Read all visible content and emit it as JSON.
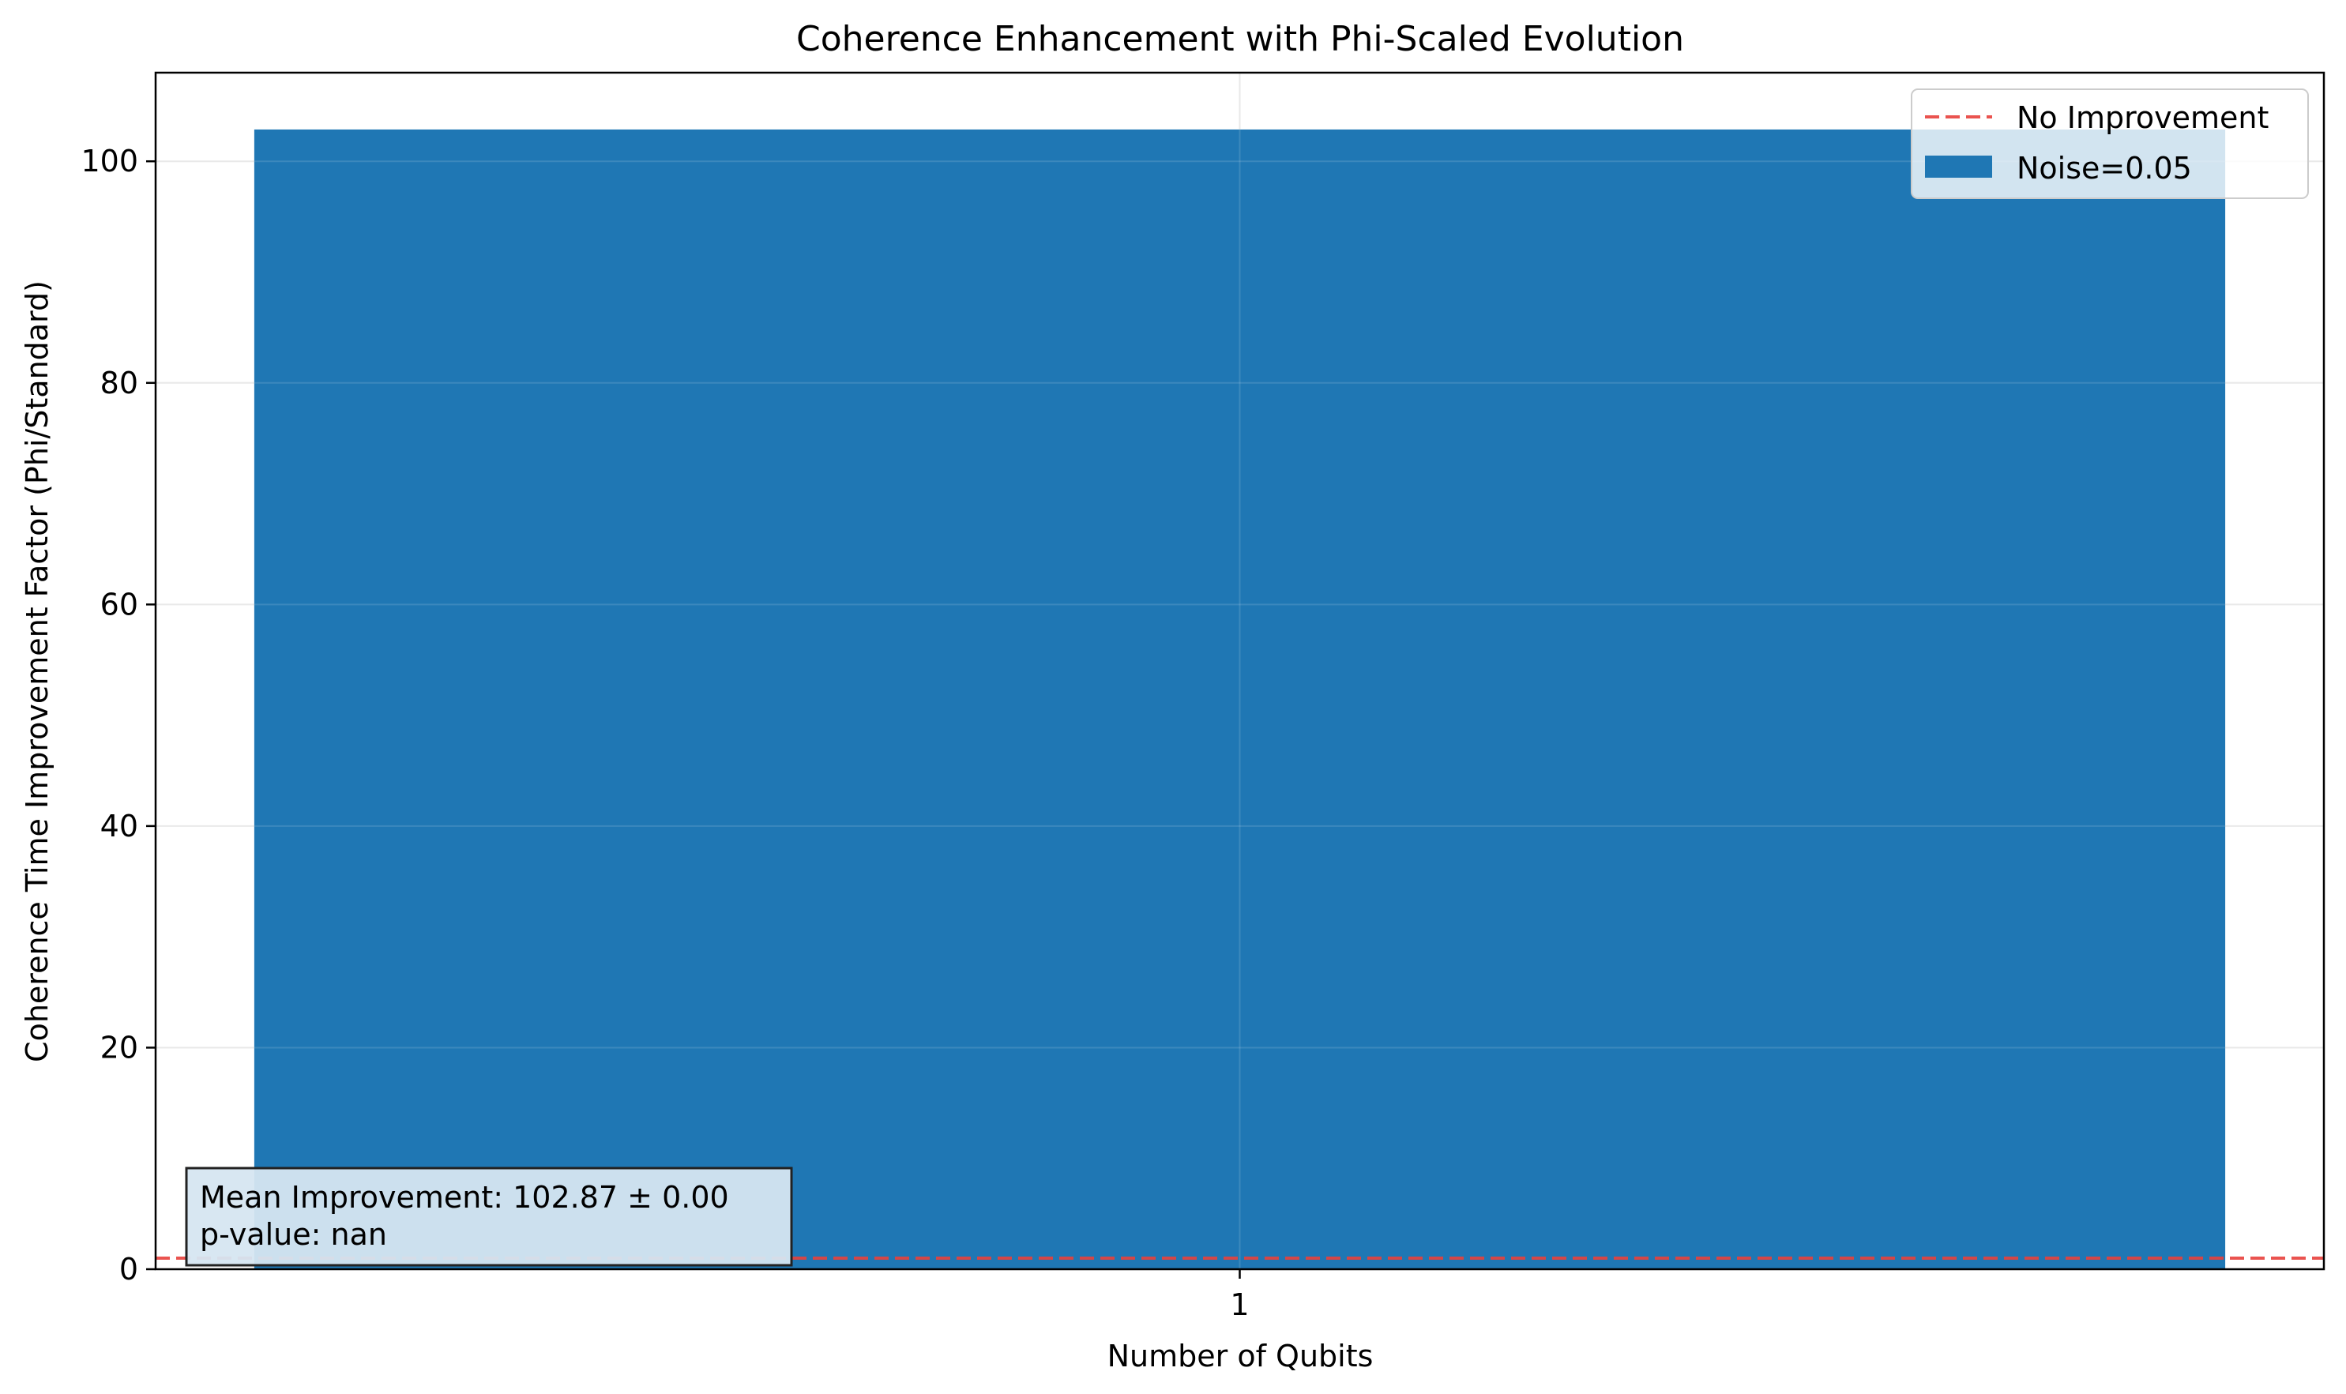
{
  "chart_data": {
    "type": "bar",
    "title": "Coherence Enhancement with Phi-Scaled Evolution",
    "xlabel": "Number of Qubits",
    "ylabel": "Coherence Time Improvement Factor (Phi/Standard)",
    "categories": [
      "1"
    ],
    "series": [
      {
        "name": "Noise=0.05",
        "values": [
          102.87
        ],
        "color": "#1f77b4"
      }
    ],
    "ylim": [
      0,
      108
    ],
    "yticks": [
      0,
      20,
      40,
      60,
      80,
      100
    ],
    "grid": true,
    "legend": {
      "placement": "top-right",
      "entries": [
        {
          "label": "No Improvement",
          "style": "dashed-line",
          "color": "#e8413c"
        },
        {
          "label": "Noise=0.05",
          "style": "patch",
          "color": "#1f77b4"
        }
      ]
    },
    "reference_line": {
      "y": 1,
      "label": "No Improvement",
      "style": "dashed",
      "color": "#e8413c"
    },
    "annotation": {
      "placement": "bottom-left",
      "lines": [
        "Mean Improvement: 102.87 ± 0.00",
        "p-value: nan"
      ]
    }
  }
}
